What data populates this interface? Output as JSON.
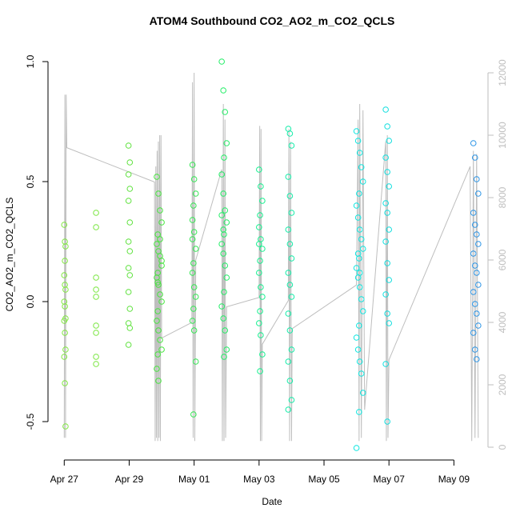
{
  "chart_data": {
    "type": "scatter",
    "title": "ATOM4 Southbound CO2_AO2_m_CO2_QCLS",
    "x_label": "Date",
    "y_label": "CO2_AO2_m_CO2_QCLS",
    "xlim": [
      -0.5,
      13.05
    ],
    "xticks": [
      {
        "value": 0,
        "label": "Apr 27"
      },
      {
        "value": 2,
        "label": "Apr 29"
      },
      {
        "value": 4,
        "label": "May 01"
      },
      {
        "value": 6,
        "label": "May 03"
      },
      {
        "value": 8,
        "label": "May 05"
      },
      {
        "value": 10,
        "label": "May 07"
      },
      {
        "value": 12,
        "label": "May 09"
      }
    ],
    "ylim": [
      -0.66,
      1.05
    ],
    "yticks": [
      -0.5,
      {
        "value": 0,
        "label": "0.0"
      },
      0.5,
      {
        "value": 1,
        "label": "1.0"
      }
    ],
    "y2lim": [
      -410,
      12744
    ],
    "y2ticks": [
      0,
      2000,
      4000,
      6000,
      8000,
      10000,
      12000
    ],
    "series": [
      {
        "color": "#80e840",
        "x": [
          0,
          0.02,
          0.04,
          0,
          0.02,
          0.04,
          0,
          0.02,
          0.04,
          0,
          0.02,
          0.04,
          0,
          0.02,
          0.04,
          0.02
        ],
        "values": [
          0.32,
          0.25,
          0.23,
          0.11,
          0.07,
          0.05,
          0,
          -0.02,
          -0.07,
          -0.08,
          -0.13,
          -0.2,
          -0.23,
          -0.34,
          -0.52,
          0.17
        ]
      },
      {
        "color": "#7ae640",
        "x": [
          0.98,
          0.98,
          0.98,
          0.98,
          0.98,
          0.98,
          0.98,
          0.98,
          0.98
        ],
        "values": [
          0.37,
          0.31,
          0.1,
          0.05,
          0.02,
          -0.1,
          -0.13,
          -0.23,
          -0.26
        ]
      },
      {
        "color": "#5fe23e",
        "x": [
          1.98,
          2.02,
          1.98,
          2.02,
          1.98,
          2.02,
          1.98,
          2.02,
          1.98,
          2.02,
          1.98,
          2.02,
          1.98,
          2.02,
          1.98
        ],
        "values": [
          0.65,
          0.58,
          0.53,
          0.47,
          0.42,
          0.33,
          0.25,
          0.21,
          0.14,
          0.11,
          0.04,
          -0.03,
          -0.09,
          -0.11,
          -0.18
        ]
      },
      {
        "color": "#44e63c",
        "x": [
          2.85,
          2.9,
          2.95,
          3.0,
          2.88,
          2.85,
          2.9,
          2.95,
          3.0,
          2.88,
          2.85,
          2.9,
          2.95,
          3.0,
          2.88,
          2.85,
          2.9,
          2.95,
          3.0,
          2.88,
          2.85,
          2.9,
          2.95,
          3.0,
          2.88
        ],
        "values": [
          0.52,
          0.45,
          0.38,
          0.33,
          0.28,
          0.24,
          0.21,
          0.19,
          0.15,
          0.12,
          0.1,
          0.07,
          0.03,
          0,
          -0.04,
          -0.08,
          -0.12,
          -0.16,
          -0.2,
          -0.22,
          -0.28,
          -0.33,
          0.26,
          0.17,
          0.08
        ]
      },
      {
        "color": "#33e852",
        "x": [
          3.95,
          4.0,
          4.05,
          3.98,
          3.95,
          4.0,
          4.05,
          3.98,
          3.95,
          4.0,
          4.05,
          3.98,
          3.95,
          4.0,
          4.05,
          3.98,
          3.95
        ],
        "values": [
          0.57,
          0.51,
          0.45,
          0.4,
          0.34,
          0.29,
          0.22,
          0.16,
          0.12,
          0.06,
          0.02,
          -0.03,
          -0.08,
          -0.12,
          -0.25,
          -0.47,
          0.26
        ]
      },
      {
        "color": "#22ee66",
        "x": [
          4.85,
          4.9,
          4.95,
          5.0,
          4.92,
          4.85,
          4.9,
          4.95,
          5.0,
          4.92,
          4.85,
          4.9,
          4.95,
          5.0,
          4.92,
          4.85,
          4.9,
          4.95,
          5.0,
          4.92,
          4.85,
          4.9
        ],
        "values": [
          1.0,
          0.88,
          0.79,
          0.66,
          0.6,
          0.53,
          0.45,
          0.38,
          0.33,
          0.28,
          0.24,
          0.2,
          0.15,
          0.1,
          0.04,
          -0.02,
          -0.07,
          -0.12,
          -0.2,
          -0.23,
          0.36,
          0.3
        ]
      },
      {
        "color": "#14f08e",
        "x": [
          6.0,
          6.05,
          6.1,
          6.03,
          6.0,
          6.05,
          6.1,
          6.03,
          6.0,
          6.05,
          6.1,
          6.03,
          6.0,
          6.05,
          6.1,
          6.03,
          6.0
        ],
        "values": [
          0.55,
          0.48,
          0.42,
          0.36,
          0.31,
          0.26,
          0.22,
          0.17,
          0.12,
          0.06,
          0.02,
          -0.04,
          -0.09,
          -0.14,
          -0.22,
          -0.29,
          0.24
        ]
      },
      {
        "color": "#12eca8",
        "x": [
          6.9,
          6.95,
          7.0,
          6.9,
          6.95,
          7.0,
          6.9,
          6.95,
          7.0,
          6.9,
          6.95,
          7.0,
          6.9,
          6.95,
          7.0,
          6.9,
          6.95,
          7.0,
          6.9
        ],
        "values": [
          0.72,
          0.7,
          0.65,
          0.52,
          0.44,
          0.37,
          0.3,
          0.24,
          0.18,
          0.12,
          0.07,
          0.02,
          -0.05,
          -0.12,
          -0.2,
          -0.25,
          -0.33,
          -0.41,
          -0.45
        ]
      },
      {
        "color": "#0ce6e0",
        "x": [
          9.0,
          9.05,
          9.1,
          9.15,
          9.2,
          9.08,
          9.0,
          9.05,
          9.1,
          9.15,
          9.2,
          9.08,
          9.0,
          9.05,
          9.1,
          9.15,
          9.2,
          9.08,
          9.0,
          9.05,
          9.1,
          9.15,
          9.2,
          9.08,
          9.0,
          9.05,
          9.1
        ],
        "values": [
          0.71,
          0.67,
          0.62,
          0.56,
          0.5,
          0.45,
          0.4,
          0.35,
          0.3,
          0.26,
          0.22,
          0.18,
          0.14,
          0.1,
          0.06,
          0.01,
          -0.04,
          -0.1,
          -0.15,
          -0.2,
          -0.25,
          -0.3,
          -0.38,
          -0.46,
          -0.61,
          0.2,
          0.12
        ]
      },
      {
        "color": "#10dede",
        "x": [
          9.9,
          9.95,
          10.0,
          9.9,
          9.95,
          10.0,
          9.9,
          9.95,
          10.0,
          9.9,
          9.95,
          10.0,
          9.9,
          9.95,
          10.0,
          9.9,
          9.95
        ],
        "values": [
          0.8,
          0.73,
          0.67,
          0.6,
          0.54,
          0.48,
          0.41,
          0.37,
          0.3,
          0.25,
          0.16,
          0.09,
          0.03,
          -0.05,
          -0.09,
          -0.26,
          -0.5
        ]
      },
      {
        "color": "#2a94e6",
        "x": [
          12.6,
          12.65,
          12.7,
          12.75,
          12.6,
          12.65,
          12.7,
          12.75,
          12.6,
          12.65,
          12.7,
          12.75,
          12.6,
          12.65,
          12.7,
          12.75,
          12.6,
          12.65,
          12.7
        ],
        "values": [
          0.66,
          0.6,
          0.51,
          0.45,
          0.37,
          0.32,
          0.28,
          0.24,
          0.2,
          0.15,
          0.12,
          0.07,
          0.04,
          -0.01,
          -0.05,
          -0.1,
          -0.13,
          -0.2,
          -0.24
        ]
      },
      {
        "color": "#bebebe",
        "axis": "y2",
        "x": [
          0,
          0.02,
          0.04,
          0.06,
          0.08,
          2.78,
          2.8,
          2.82,
          2.84,
          2.86,
          2.88,
          2.9,
          2.92,
          2.94,
          2.96,
          2.98,
          3.0,
          3.93,
          3.95,
          3.97,
          4.0,
          4.02,
          4.05,
          4.85,
          4.87,
          4.9,
          4.92,
          4.95,
          4.97,
          5.0,
          6.0,
          6.02,
          6.04,
          6.06,
          6.08,
          6.1,
          6.9,
          6.92,
          6.94,
          6.97,
          7.0,
          7.02,
          9.0,
          9.05,
          9.08,
          9.1,
          9.15,
          9.2,
          9.25,
          9.9,
          9.92,
          9.95,
          9.97,
          10.0,
          12.5,
          12.55,
          12.6,
          12.65,
          12.7,
          12.75
        ],
        "values": [
          300,
          11300,
          300,
          11300,
          9600,
          8500,
          200,
          9000,
          300,
          9500,
          200,
          9800,
          300,
          10000,
          200,
          10000,
          3500,
          4000,
          11700,
          300,
          12000,
          200,
          6000,
          8900,
          200,
          11000,
          200,
          10500,
          300,
          4500,
          4800,
          10300,
          200,
          10200,
          200,
          3300,
          4700,
          10200,
          200,
          9800,
          200,
          3800,
          5200,
          10500,
          200,
          11000,
          300,
          10800,
          1200,
          9800,
          200,
          10000,
          300,
          2800,
          9000,
          200,
          9500,
          300,
          9400,
          300
        ]
      }
    ]
  }
}
